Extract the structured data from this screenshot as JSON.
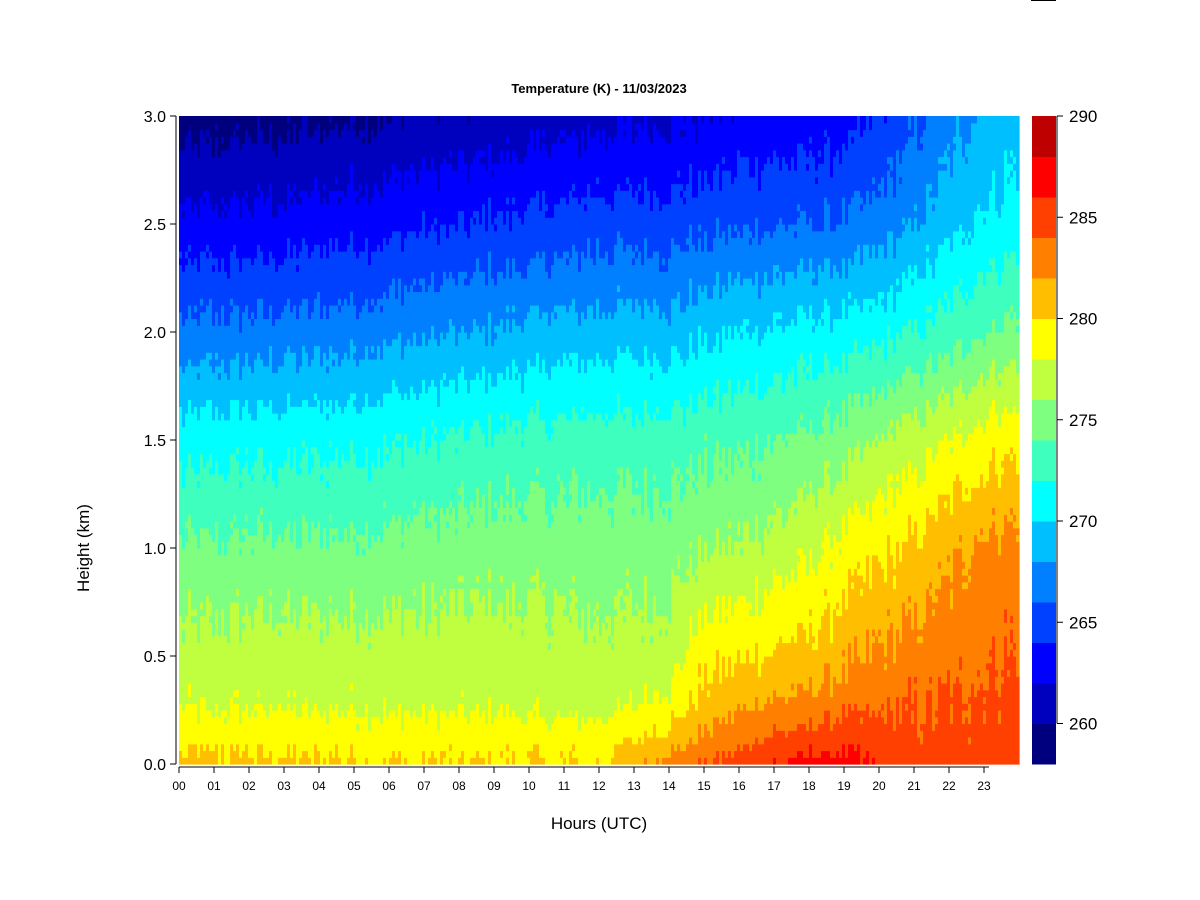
{
  "chart_data": {
    "type": "heatmap",
    "title": "Temperature (K) - 11/03/2023",
    "xlabel": "Hours (UTC)",
    "ylabel": "Height (km)",
    "xlim": [
      0,
      24
    ],
    "ylim": [
      0.0,
      3.0
    ],
    "x_ticks": [
      0,
      1,
      2,
      3,
      4,
      5,
      6,
      7,
      8,
      9,
      10,
      11,
      12,
      13,
      14,
      15,
      16,
      17,
      18,
      19,
      20,
      21,
      22,
      23
    ],
    "x_tick_labels": [
      "00",
      "01",
      "02",
      "03",
      "04",
      "05",
      "06",
      "07",
      "08",
      "09",
      "10",
      "11",
      "12",
      "13",
      "14",
      "15",
      "16",
      "17",
      "18",
      "19",
      "20",
      "21",
      "22",
      "23"
    ],
    "y_ticks": [
      0.0,
      0.5,
      1.0,
      1.5,
      2.0,
      2.5,
      3.0
    ],
    "y_tick_labels": [
      "0.0",
      "0.5",
      "1.0",
      "1.5",
      "2.0",
      "2.5",
      "3.0"
    ],
    "colorbar": {
      "range": [
        258,
        290
      ],
      "ticks": [
        260,
        265,
        270,
        275,
        280,
        285,
        290
      ],
      "tick_labels": [
        "260",
        "265",
        "270",
        "275",
        "280",
        "285",
        "290"
      ],
      "levels": [
        258,
        260,
        262,
        264,
        266,
        268,
        270,
        272,
        274,
        276,
        278,
        280,
        282,
        284,
        286,
        288,
        290
      ],
      "colors": [
        "#00007f",
        "#0000bf",
        "#0000ff",
        "#0040ff",
        "#0080ff",
        "#00bfff",
        "#00ffff",
        "#3fffbf",
        "#7fff7f",
        "#bfff3f",
        "#ffff00",
        "#ffbf00",
        "#ff8000",
        "#ff4000",
        "#ff0000",
        "#bf0000"
      ]
    },
    "temperature_profile": {
      "hours": [
        0,
        3,
        6,
        9,
        12,
        14,
        15,
        16,
        17,
        18,
        19,
        20,
        21,
        22,
        23,
        24
      ],
      "heights_km": [
        0.0,
        0.1,
        0.3,
        0.5,
        1.0,
        1.5,
        2.0,
        2.5,
        3.0
      ],
      "values_K": [
        [
          280.5,
          279.5,
          277.5,
          276.8,
          274.3,
          271.0,
          266.5,
          262.5,
          259.0
        ],
        [
          280.5,
          279.5,
          277.6,
          277.0,
          274.4,
          271.3,
          266.8,
          262.8,
          259.3
        ],
        [
          280.0,
          279.3,
          277.4,
          276.9,
          274.6,
          271.8,
          267.4,
          263.4,
          260.0
        ],
        [
          280.0,
          279.3,
          277.3,
          277.0,
          275.0,
          272.5,
          268.2,
          264.2,
          260.6
        ],
        [
          280.0,
          279.2,
          277.0,
          276.6,
          275.0,
          273.0,
          269.0,
          265.0,
          261.4
        ],
        [
          283.0,
          281.0,
          278.5,
          277.1,
          275.2,
          273.0,
          269.0,
          265.0,
          261.8
        ],
        [
          284.0,
          282.5,
          280.5,
          279.3,
          275.8,
          273.4,
          269.5,
          265.3,
          262.0
        ],
        [
          285.5,
          283.5,
          281.5,
          279.8,
          276.1,
          273.6,
          270.0,
          265.7,
          262.4
        ],
        [
          286.0,
          284.5,
          282.0,
          280.2,
          276.8,
          274.0,
          270.3,
          265.9,
          262.6
        ],
        [
          287.0,
          285.0,
          282.5,
          280.6,
          277.6,
          274.4,
          270.6,
          266.0,
          262.8
        ],
        [
          287.0,
          285.5,
          283.0,
          281.5,
          278.6,
          275.0,
          270.8,
          266.2,
          263.0
        ],
        [
          286.0,
          285.0,
          283.5,
          282.3,
          279.5,
          276.0,
          271.3,
          266.9,
          264.0
        ],
        [
          285.0,
          284.5,
          283.8,
          282.8,
          280.4,
          277.0,
          272.0,
          267.9,
          265.5
        ],
        [
          285.0,
          284.6,
          284.1,
          283.3,
          281.5,
          278.0,
          273.0,
          269.2,
          267.0
        ],
        [
          285.0,
          284.8,
          284.4,
          283.8,
          282.5,
          279.0,
          274.0,
          270.5,
          268.5
        ],
        [
          285.0,
          284.9,
          284.6,
          284.1,
          283.0,
          279.6,
          274.6,
          271.0,
          269.0
        ]
      ]
    }
  }
}
